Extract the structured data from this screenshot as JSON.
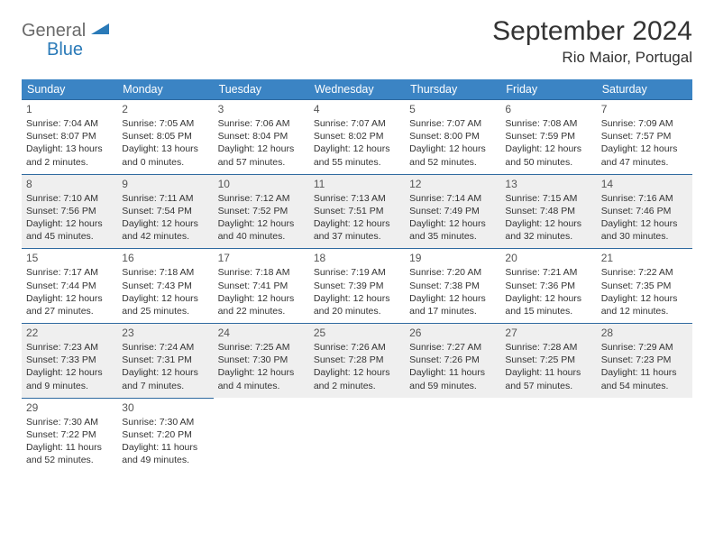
{
  "logo": {
    "line1": "General",
    "line2": "Blue"
  },
  "title": "September 2024",
  "location": "Rio Maior, Portugal",
  "colors": {
    "header_bg": "#3b84c4",
    "header_text": "#ffffff",
    "row_alt_bg": "#efefef",
    "row_bg": "#ffffff",
    "cell_border": "#2f6aa0",
    "logo_gray": "#6a6a6a",
    "logo_blue": "#2a7ab8",
    "text": "#333333"
  },
  "weekdays": [
    "Sunday",
    "Monday",
    "Tuesday",
    "Wednesday",
    "Thursday",
    "Friday",
    "Saturday"
  ],
  "days": [
    {
      "n": 1,
      "sr": "7:04 AM",
      "ss": "8:07 PM",
      "dl": "13 hours and 2 minutes."
    },
    {
      "n": 2,
      "sr": "7:05 AM",
      "ss": "8:05 PM",
      "dl": "13 hours and 0 minutes."
    },
    {
      "n": 3,
      "sr": "7:06 AM",
      "ss": "8:04 PM",
      "dl": "12 hours and 57 minutes."
    },
    {
      "n": 4,
      "sr": "7:07 AM",
      "ss": "8:02 PM",
      "dl": "12 hours and 55 minutes."
    },
    {
      "n": 5,
      "sr": "7:07 AM",
      "ss": "8:00 PM",
      "dl": "12 hours and 52 minutes."
    },
    {
      "n": 6,
      "sr": "7:08 AM",
      "ss": "7:59 PM",
      "dl": "12 hours and 50 minutes."
    },
    {
      "n": 7,
      "sr": "7:09 AM",
      "ss": "7:57 PM",
      "dl": "12 hours and 47 minutes."
    },
    {
      "n": 8,
      "sr": "7:10 AM",
      "ss": "7:56 PM",
      "dl": "12 hours and 45 minutes."
    },
    {
      "n": 9,
      "sr": "7:11 AM",
      "ss": "7:54 PM",
      "dl": "12 hours and 42 minutes."
    },
    {
      "n": 10,
      "sr": "7:12 AM",
      "ss": "7:52 PM",
      "dl": "12 hours and 40 minutes."
    },
    {
      "n": 11,
      "sr": "7:13 AM",
      "ss": "7:51 PM",
      "dl": "12 hours and 37 minutes."
    },
    {
      "n": 12,
      "sr": "7:14 AM",
      "ss": "7:49 PM",
      "dl": "12 hours and 35 minutes."
    },
    {
      "n": 13,
      "sr": "7:15 AM",
      "ss": "7:48 PM",
      "dl": "12 hours and 32 minutes."
    },
    {
      "n": 14,
      "sr": "7:16 AM",
      "ss": "7:46 PM",
      "dl": "12 hours and 30 minutes."
    },
    {
      "n": 15,
      "sr": "7:17 AM",
      "ss": "7:44 PM",
      "dl": "12 hours and 27 minutes."
    },
    {
      "n": 16,
      "sr": "7:18 AM",
      "ss": "7:43 PM",
      "dl": "12 hours and 25 minutes."
    },
    {
      "n": 17,
      "sr": "7:18 AM",
      "ss": "7:41 PM",
      "dl": "12 hours and 22 minutes."
    },
    {
      "n": 18,
      "sr": "7:19 AM",
      "ss": "7:39 PM",
      "dl": "12 hours and 20 minutes."
    },
    {
      "n": 19,
      "sr": "7:20 AM",
      "ss": "7:38 PM",
      "dl": "12 hours and 17 minutes."
    },
    {
      "n": 20,
      "sr": "7:21 AM",
      "ss": "7:36 PM",
      "dl": "12 hours and 15 minutes."
    },
    {
      "n": 21,
      "sr": "7:22 AM",
      "ss": "7:35 PM",
      "dl": "12 hours and 12 minutes."
    },
    {
      "n": 22,
      "sr": "7:23 AM",
      "ss": "7:33 PM",
      "dl": "12 hours and 9 minutes."
    },
    {
      "n": 23,
      "sr": "7:24 AM",
      "ss": "7:31 PM",
      "dl": "12 hours and 7 minutes."
    },
    {
      "n": 24,
      "sr": "7:25 AM",
      "ss": "7:30 PM",
      "dl": "12 hours and 4 minutes."
    },
    {
      "n": 25,
      "sr": "7:26 AM",
      "ss": "7:28 PM",
      "dl": "12 hours and 2 minutes."
    },
    {
      "n": 26,
      "sr": "7:27 AM",
      "ss": "7:26 PM",
      "dl": "11 hours and 59 minutes."
    },
    {
      "n": 27,
      "sr": "7:28 AM",
      "ss": "7:25 PM",
      "dl": "11 hours and 57 minutes."
    },
    {
      "n": 28,
      "sr": "7:29 AM",
      "ss": "7:23 PM",
      "dl": "11 hours and 54 minutes."
    },
    {
      "n": 29,
      "sr": "7:30 AM",
      "ss": "7:22 PM",
      "dl": "11 hours and 52 minutes."
    },
    {
      "n": 30,
      "sr": "7:30 AM",
      "ss": "7:20 PM",
      "dl": "11 hours and 49 minutes."
    }
  ],
  "labels": {
    "sunrise": "Sunrise:",
    "sunset": "Sunset:",
    "daylight": "Daylight:"
  }
}
